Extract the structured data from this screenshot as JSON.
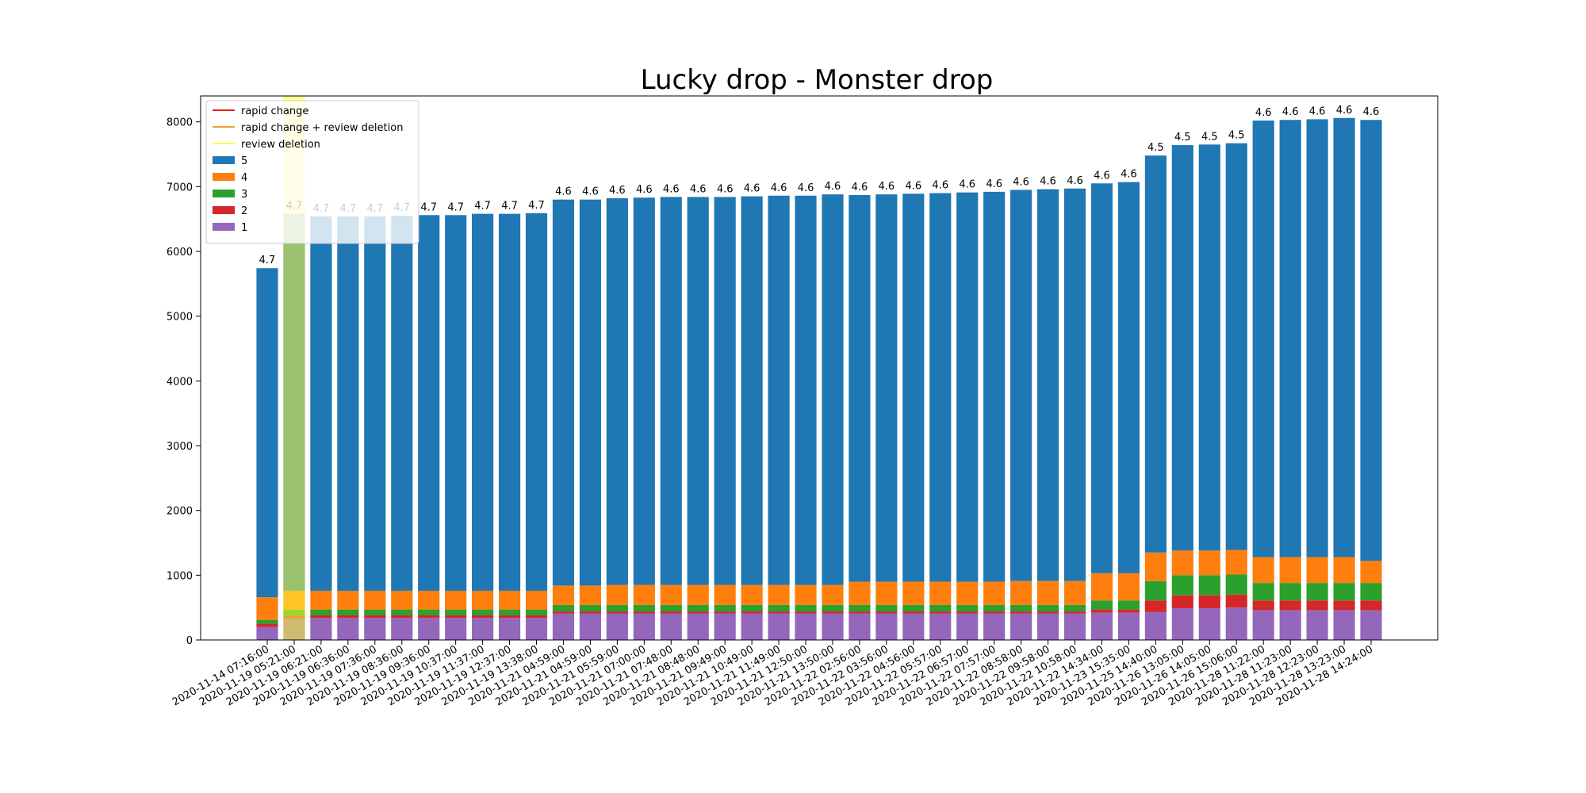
{
  "chart_data": {
    "type": "bar",
    "stacked": true,
    "title": "Lucky drop - Monster drop",
    "xlabel": "",
    "ylabel": "",
    "ylim": [
      0,
      8400
    ],
    "yticks": [
      0,
      1000,
      2000,
      3000,
      4000,
      5000,
      6000,
      7000,
      8000
    ],
    "grid": false,
    "legend_position": "top-left",
    "categories": [
      "2020-11-14 07:16:00",
      "2020-11-19 05:21:00",
      "2020-11-19 06:21:00",
      "2020-11-19 06:36:00",
      "2020-11-19 07:36:00",
      "2020-11-19 08:36:00",
      "2020-11-19 09:36:00",
      "2020-11-19 10:37:00",
      "2020-11-19 11:37:00",
      "2020-11-19 12:37:00",
      "2020-11-19 13:38:00",
      "2020-11-21 04:59:00",
      "2020-11-21 04:59:00",
      "2020-11-21 05:59:00",
      "2020-11-21 07:00:00",
      "2020-11-21 07:48:00",
      "2020-11-21 08:48:00",
      "2020-11-21 09:49:00",
      "2020-11-21 10:49:00",
      "2020-11-21 11:49:00",
      "2020-11-21 12:50:00",
      "2020-11-21 13:50:00",
      "2020-11-22 02:56:00",
      "2020-11-22 03:56:00",
      "2020-11-22 04:56:00",
      "2020-11-22 05:57:00",
      "2020-11-22 06:57:00",
      "2020-11-22 07:57:00",
      "2020-11-22 08:58:00",
      "2020-11-22 09:58:00",
      "2020-11-22 10:58:00",
      "2020-11-22 14:34:00",
      "2020-11-23 15:35:00",
      "2020-11-25 14:40:00",
      "2020-11-26 13:05:00",
      "2020-11-26 14:05:00",
      "2020-11-26 15:06:00",
      "2020-11-28 11:22:00",
      "2020-11-28 11:23:00",
      "2020-11-28 12:23:00",
      "2020-11-28 13:23:00",
      "2020-11-28 14:24:00"
    ],
    "bar_labels": [
      "4.7",
      "4.7",
      "4.7",
      "4.7",
      "4.7",
      "4.7",
      "4.7",
      "4.7",
      "4.7",
      "4.7",
      "4.7",
      "4.6",
      "4.6",
      "4.6",
      "4.6",
      "4.6",
      "4.6",
      "4.6",
      "4.6",
      "4.6",
      "4.6",
      "4.6",
      "4.6",
      "4.6",
      "4.6",
      "4.6",
      "4.6",
      "4.6",
      "4.6",
      "4.6",
      "4.6",
      "4.6",
      "4.6",
      "4.5",
      "4.5",
      "4.5",
      "4.5",
      "4.6",
      "4.6",
      "4.6",
      "4.6",
      "4.6"
    ],
    "series": [
      {
        "name": "1",
        "color": "#9467bd",
        "values": [
          200,
          330,
          340,
          340,
          340,
          340,
          340,
          340,
          340,
          340,
          340,
          410,
          410,
          410,
          410,
          410,
          410,
          410,
          410,
          410,
          410,
          410,
          410,
          410,
          410,
          410,
          410,
          410,
          410,
          410,
          410,
          420,
          420,
          430,
          490,
          490,
          500,
          460,
          460,
          460,
          460,
          460
        ]
      },
      {
        "name": "2",
        "color": "#d62728",
        "values": [
          50,
          40,
          40,
          40,
          40,
          40,
          40,
          40,
          40,
          40,
          40,
          30,
          30,
          30,
          30,
          30,
          30,
          30,
          30,
          30,
          30,
          30,
          30,
          30,
          30,
          30,
          30,
          30,
          30,
          30,
          30,
          50,
          50,
          180,
          200,
          200,
          200,
          150,
          150,
          150,
          150,
          150
        ]
      },
      {
        "name": "3",
        "color": "#2ca02c",
        "values": [
          60,
          100,
          90,
          90,
          90,
          90,
          90,
          90,
          90,
          90,
          90,
          100,
          100,
          100,
          100,
          100,
          100,
          100,
          100,
          100,
          100,
          100,
          100,
          100,
          100,
          100,
          100,
          100,
          100,
          100,
          100,
          140,
          140,
          300,
          310,
          310,
          310,
          270,
          270,
          270,
          270,
          270
        ]
      },
      {
        "name": "4",
        "color": "#ff7f0e",
        "values": [
          350,
          290,
          290,
          290,
          290,
          290,
          290,
          290,
          290,
          290,
          290,
          300,
          300,
          310,
          310,
          310,
          310,
          310,
          310,
          310,
          310,
          310,
          360,
          360,
          360,
          360,
          360,
          360,
          370,
          370,
          370,
          420,
          420,
          440,
          380,
          380,
          380,
          400,
          400,
          400,
          400,
          340
        ]
      },
      {
        "name": "5",
        "color": "#1f77b4",
        "values": [
          5080,
          5820,
          5780,
          5780,
          5780,
          5790,
          5800,
          5800,
          5820,
          5820,
          5830,
          5960,
          5960,
          5970,
          5980,
          5990,
          5990,
          5990,
          6000,
          6010,
          6010,
          6030,
          5970,
          5980,
          5990,
          6000,
          6010,
          6020,
          6040,
          6050,
          6060,
          6020,
          6040,
          6130,
          6260,
          6270,
          6280,
          6740,
          6750,
          6760,
          6780,
          6810
        ]
      }
    ],
    "legend_lines": [
      {
        "name": "rapid change",
        "color": "#e8231a"
      },
      {
        "name": "rapid change + review deletion",
        "color": "#f0a030"
      },
      {
        "name": "review deletion",
        "color": "#ffff33"
      }
    ],
    "highlight": {
      "category_index": 1,
      "color": "#ffff33",
      "label": "review deletion"
    }
  }
}
